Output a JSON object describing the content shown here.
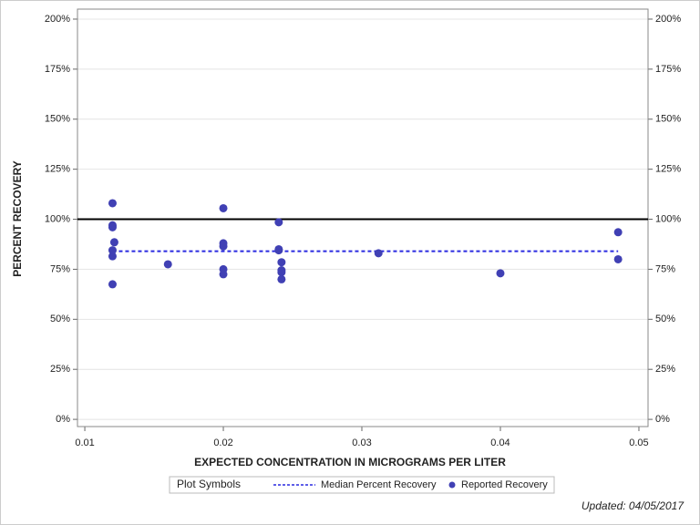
{
  "chart_data": {
    "type": "scatter",
    "xlabel": "EXPECTED CONCENTRATION IN MICROGRAMS PER LITER",
    "ylabel": "PERCENT RECOVERY",
    "xlim": [
      0.00947,
      0.05066
    ],
    "ylim": [
      -3.6,
      205
    ],
    "xticks": [
      0.01,
      0.02,
      0.03,
      0.04,
      0.05
    ],
    "yticks": [
      {
        "value": 0,
        "label": "0%"
      },
      {
        "value": 25,
        "label": "25%"
      },
      {
        "value": 50,
        "label": "50%"
      },
      {
        "value": 75,
        "label": "75%"
      },
      {
        "value": 100,
        "label": "100%"
      },
      {
        "value": 125,
        "label": "125%"
      },
      {
        "value": 150,
        "label": "150%"
      },
      {
        "value": 175,
        "label": "175%"
      },
      {
        "value": 200,
        "label": "200%"
      }
    ],
    "grid": true,
    "reference_line": 100,
    "legend_title": "Plot Symbols",
    "series": [
      {
        "name": "Median Percent Recovery",
        "mode": "dashed-line",
        "color": "#2a2ae0",
        "x": [
          0.012,
          0.0485
        ],
        "values": [
          84,
          84
        ]
      },
      {
        "name": "Reported Recovery",
        "mode": "markers",
        "color": "#4040b4",
        "x": [
          0.012,
          0.012,
          0.012,
          0.01213,
          0.012,
          0.012,
          0.012,
          0.016,
          0.02,
          0.02,
          0.02,
          0.02,
          0.02,
          0.024,
          0.024,
          0.024,
          0.0242,
          0.0242,
          0.0242,
          0.0242,
          0.0312,
          0.04,
          0.0485,
          0.0485
        ],
        "values": [
          108,
          97,
          96,
          88.5,
          84.5,
          81.5,
          67.5,
          77.5,
          105.5,
          88,
          86.5,
          75,
          72.5,
          98.5,
          85,
          84.5,
          78.5,
          74.5,
          73.5,
          70,
          83,
          73,
          93.5,
          80
        ]
      }
    ],
    "footnote": "Updated: 04/05/2017"
  }
}
